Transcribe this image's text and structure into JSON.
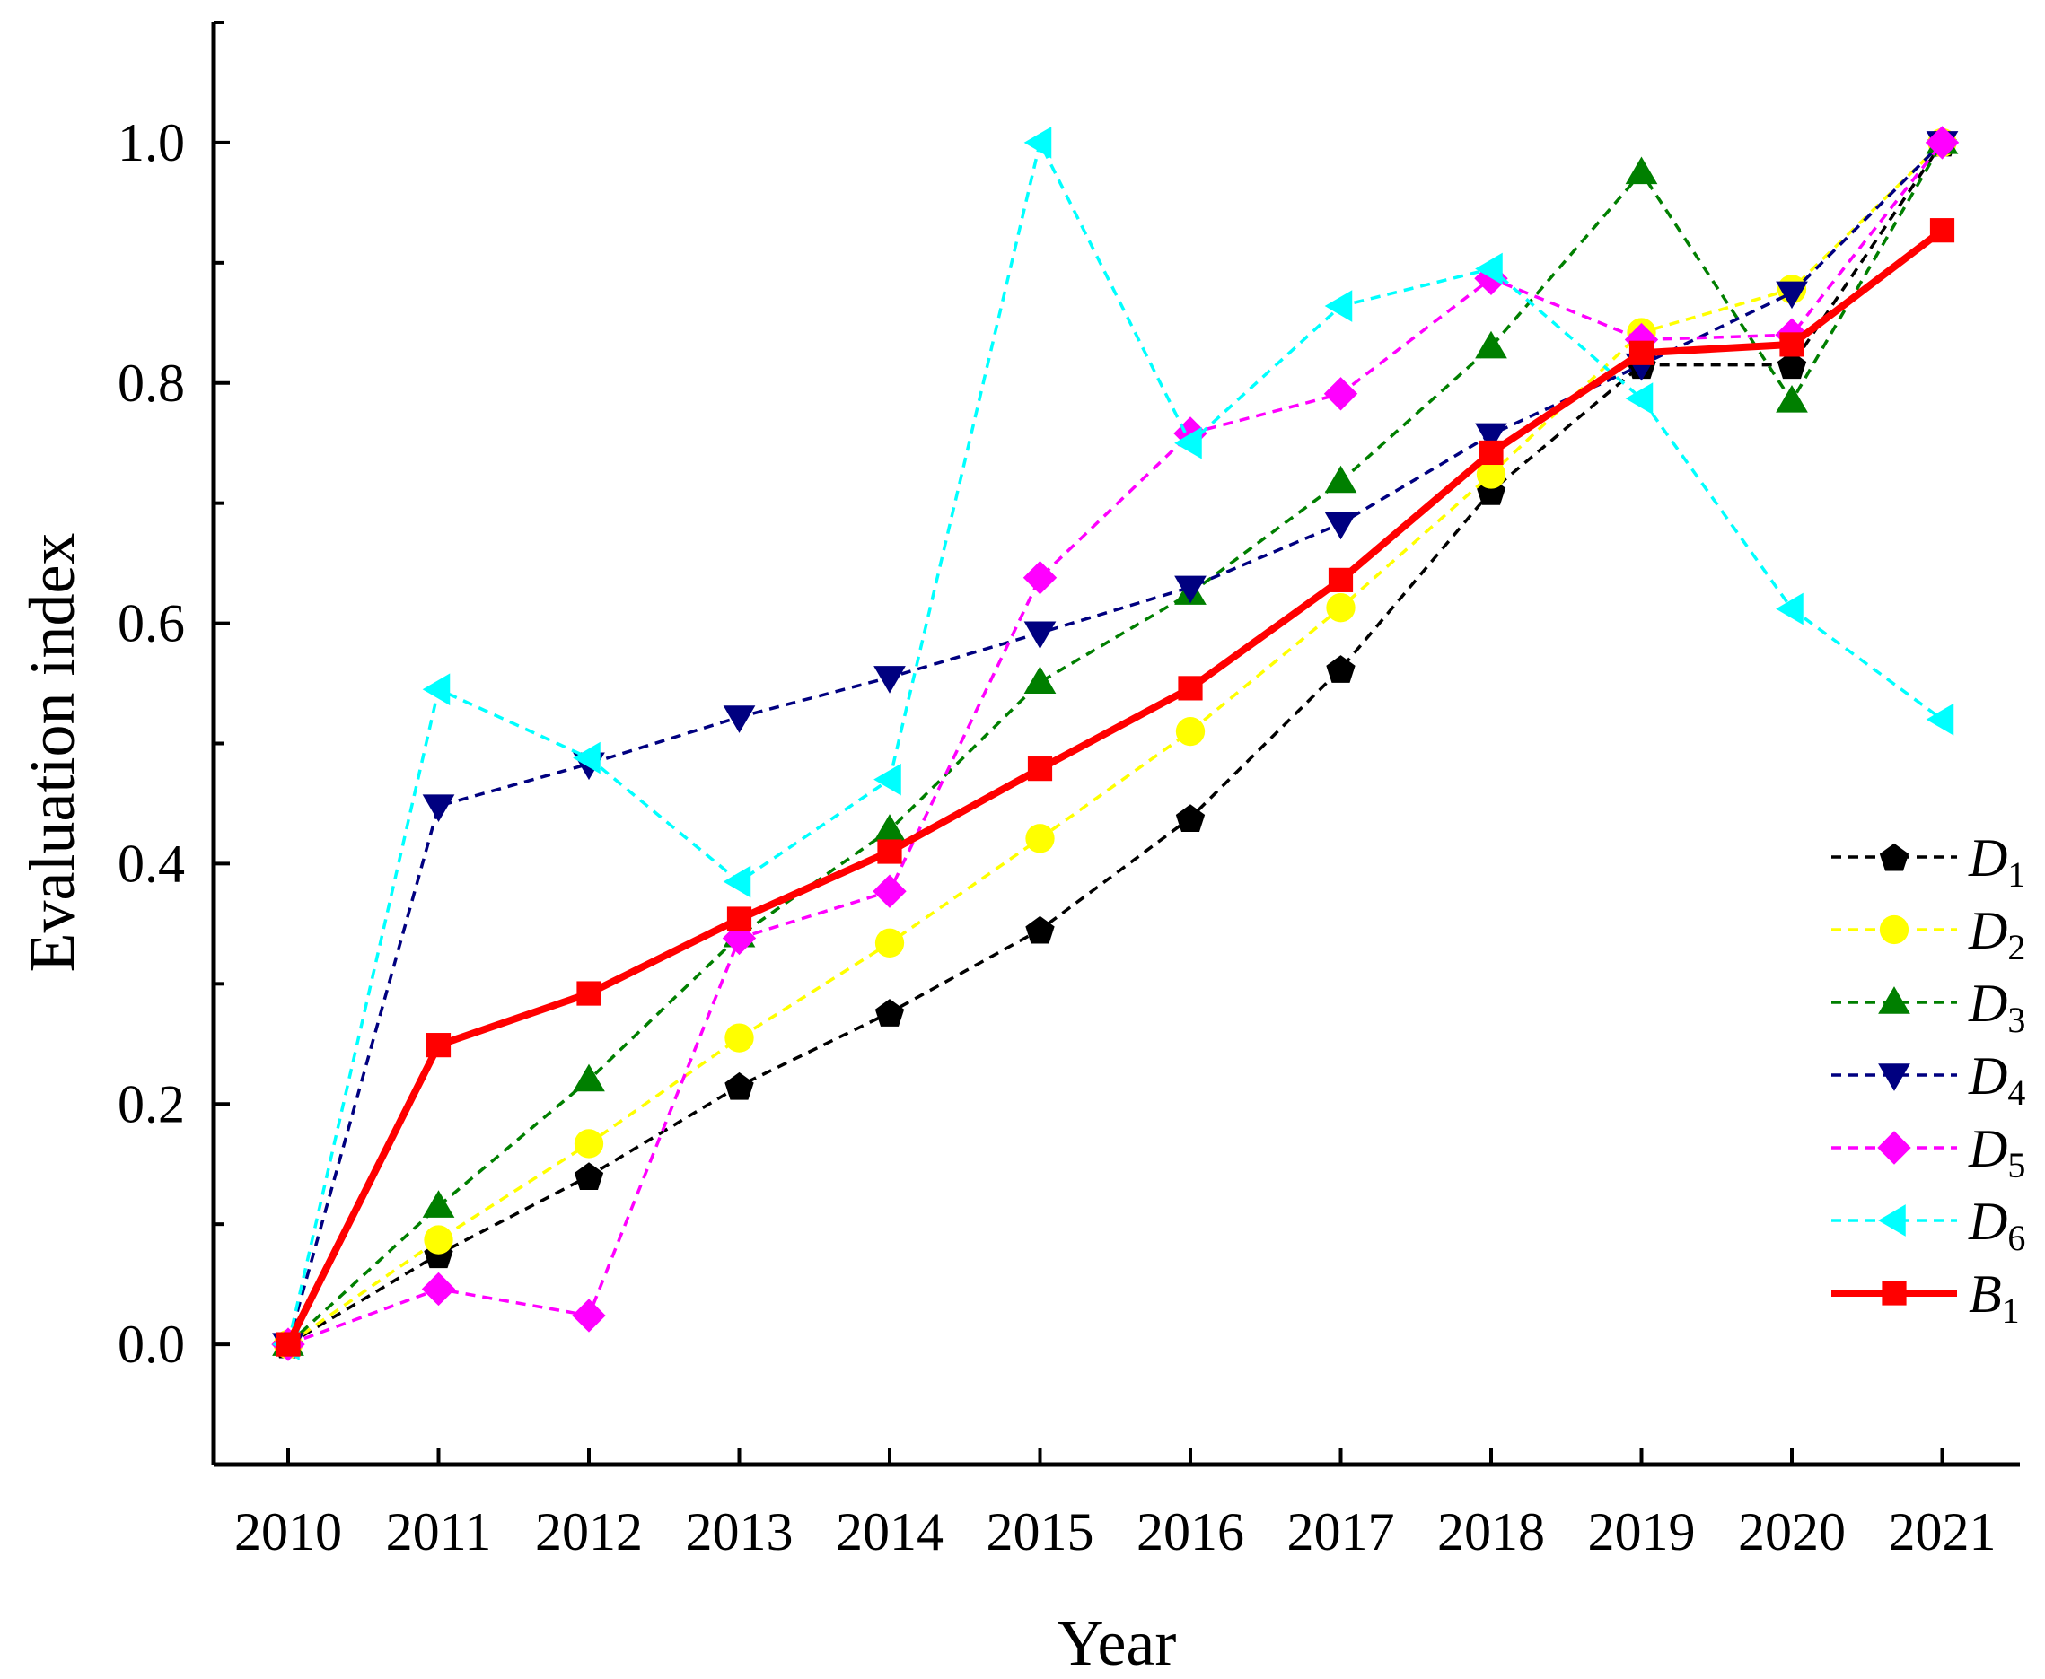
{
  "chart_data": {
    "type": "line",
    "title": "",
    "xlabel": "Year",
    "ylabel": "Evaluation index",
    "categories": [
      "2010",
      "2011",
      "2012",
      "2013",
      "2014",
      "2015",
      "2016",
      "2017",
      "2018",
      "2019",
      "2020",
      "2021"
    ],
    "ylim": [
      -0.1,
      1.1
    ],
    "yticks": [
      "0.0",
      "0.2",
      "0.4",
      "0.6",
      "0.8",
      "1.0"
    ],
    "legend_position": "bottom-right",
    "series": [
      {
        "name": "D",
        "sub": "1",
        "color": "#000000",
        "marker": "pentagon",
        "dash": true,
        "values": [
          0.0,
          0.075,
          0.14,
          0.215,
          0.276,
          0.345,
          0.438,
          0.562,
          0.71,
          0.815,
          0.815,
          1.0
        ]
      },
      {
        "name": "D",
        "sub": "2",
        "color": "#FFFF00",
        "marker": "circle",
        "dash": true,
        "values": [
          0.0,
          0.087,
          0.167,
          0.255,
          0.334,
          0.421,
          0.51,
          0.613,
          0.724,
          0.842,
          0.878,
          1.0
        ]
      },
      {
        "name": "D",
        "sub": "3",
        "color": "#007F00",
        "marker": "triangle-up",
        "dash": true,
        "values": [
          0.0,
          0.115,
          0.22,
          0.34,
          0.428,
          0.551,
          0.625,
          0.718,
          0.83,
          0.975,
          0.785,
          1.0
        ]
      },
      {
        "name": "D",
        "sub": "4",
        "color": "#000080",
        "marker": "triangle-down",
        "dash": true,
        "values": [
          0.0,
          0.448,
          0.483,
          0.522,
          0.555,
          0.592,
          0.63,
          0.683,
          0.757,
          0.815,
          0.875,
          1.0
        ]
      },
      {
        "name": "D",
        "sub": "5",
        "color": "#FF00FF",
        "marker": "diamond",
        "dash": true,
        "values": [
          0.0,
          0.046,
          0.024,
          0.338,
          0.377,
          0.638,
          0.758,
          0.791,
          0.887,
          0.836,
          0.84,
          1.0
        ]
      },
      {
        "name": "D",
        "sub": "6",
        "color": "#00FFFF",
        "marker": "triangle-left",
        "dash": true,
        "values": [
          0.0,
          0.545,
          0.488,
          0.385,
          0.47,
          1.0,
          0.75,
          0.864,
          0.895,
          0.787,
          0.612,
          0.52
        ]
      },
      {
        "name": "B",
        "sub": "1",
        "color": "#FF0000",
        "marker": "square",
        "dash": false,
        "values": [
          0.0,
          0.249,
          0.292,
          0.354,
          0.41,
          0.479,
          0.546,
          0.636,
          0.742,
          0.825,
          0.832,
          0.927
        ]
      }
    ]
  }
}
